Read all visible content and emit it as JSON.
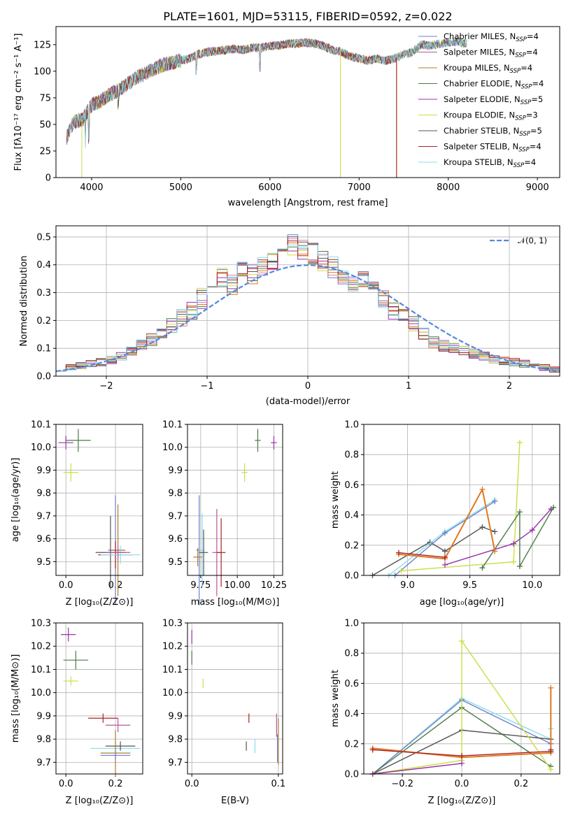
{
  "title": "PLATE=1601, MJD=53115, FIBERID=0592, z=0.022",
  "colors": {
    "Chabrier MILES": "#6f7fc8",
    "Salpeter MILES": "#b05a9a",
    "Kroupa MILES": "#b07c2a",
    "Chabrier ELODIE": "#4a7a4a",
    "Salpeter ELODIE": "#9933aa",
    "Kroupa ELODIE": "#ccdd44",
    "Chabrier STELIB": "#555555",
    "Salpeter STELIB": "#aa2222",
    "Kroupa STELIB": "#88ddee",
    "orange": "#e07820",
    "pink": "#ee77aa",
    "gauss": "#5588dd"
  },
  "chart_data": [
    {
      "type": "line",
      "xlabel": "wavelength [Angstrom, rest frame]",
      "ylabel": "Flux [fλ10⁻¹⁷ erg cm⁻² s⁻¹ A⁻¹]",
      "xlim": [
        3600,
        9250
      ],
      "ylim": [
        0,
        142
      ],
      "xticks": [
        "4000",
        "5000",
        "6000",
        "7000",
        "8000",
        "9000"
      ],
      "yticks": [
        "0",
        "25",
        "50",
        "75",
        "100",
        "125"
      ],
      "legend_position": "right",
      "series": [
        {
          "name": "Chabrier MILES, N",
          "sub": "SSP",
          "suffix": "=4"
        },
        {
          "name": "Salpeter MILES, N",
          "sub": "SSP",
          "suffix": "=4"
        },
        {
          "name": "Kroupa MILES, N",
          "sub": "SSP",
          "suffix": "=4"
        },
        {
          "name": "Chabrier ELODIE, N",
          "sub": "SSP",
          "suffix": "=4"
        },
        {
          "name": "Salpeter ELODIE, N",
          "sub": "SSP",
          "suffix": "=5"
        },
        {
          "name": "Kroupa ELODIE, N",
          "sub": "SSP",
          "suffix": "=3"
        },
        {
          "name": "Chabrier STELIB, N",
          "sub": "SSP",
          "suffix": "=5"
        },
        {
          "name": "Salpeter STELIB, N",
          "sub": "SSP",
          "suffix": "=4"
        },
        {
          "name": "Kroupa STELIB, N",
          "sub": "SSP",
          "suffix": "=4"
        }
      ],
      "spectrum_anchor": {
        "x": [
          3720,
          3800,
          3900,
          4000,
          4100,
          4200,
          4300,
          4400,
          4500,
          4600,
          4700,
          4800,
          4900,
          5000,
          5100,
          5200,
          5300,
          5400,
          5500,
          5600,
          5700,
          5800,
          5900,
          6000,
          6100,
          6200,
          6300,
          6400,
          6500,
          6600,
          6700,
          6800,
          6900,
          7000,
          7100,
          7200,
          7300,
          7400,
          7500,
          7600,
          7700,
          7800,
          7900,
          8000,
          8100,
          8200
        ],
        "y": [
          38,
          52,
          55,
          68,
          72,
          78,
          82,
          88,
          94,
          98,
          102,
          106,
          108,
          110,
          112,
          116,
          118,
          119,
          120,
          121,
          120,
          122,
          122,
          124,
          124,
          126,
          126,
          127,
          126,
          124,
          120,
          118,
          114,
          112,
          110,
          112,
          110,
          112,
          116,
          118,
          125,
          124,
          126,
          127,
          128,
          126
        ]
      }
    },
    {
      "type": "bar",
      "xlabel": "(data-model)/error",
      "ylabel": "Normed distribution",
      "xlim": [
        -2.5,
        2.5
      ],
      "ylim": [
        0,
        0.54
      ],
      "xticks": [
        "−2",
        "−1",
        "0",
        "1",
        "2"
      ],
      "yticks": [
        "0.0",
        "0.1",
        "0.2",
        "0.3",
        "0.4",
        "0.5"
      ],
      "legend": "𝒩(0, 1)",
      "legend_position": "top-right",
      "histogram_mean": [
        0.03,
        0.03,
        0.04,
        0.045,
        0.05,
        0.06,
        0.07,
        0.09,
        0.11,
        0.13,
        0.15,
        0.18,
        0.21,
        0.24,
        0.28,
        0.32,
        0.36,
        0.33,
        0.38,
        0.37,
        0.39,
        0.42,
        0.45,
        0.47,
        0.46,
        0.44,
        0.41,
        0.39,
        0.37,
        0.33,
        0.34,
        0.3,
        0.27,
        0.24,
        0.21,
        0.19,
        0.15,
        0.12,
        0.11,
        0.1,
        0.09,
        0.08,
        0.07,
        0.06,
        0.055,
        0.05,
        0.045,
        0.04,
        0.03,
        0.025
      ]
    },
    {
      "type": "scatter",
      "xlabel": "Z [log₁₀(Z/Z⊙)]",
      "ylabel": "age  [log₁₀(age/yr)]",
      "xlim": [
        -0.04,
        0.31
      ],
      "ylim": [
        9.44,
        10.1
      ],
      "xticks": [
        {
          "v": 0,
          "t": "0.0"
        },
        {
          "v": 0.2,
          "t": "0.2"
        }
      ],
      "yticks": [
        {
          "v": 9.5,
          "t": "9.5"
        },
        {
          "v": 9.6,
          "t": "9.6"
        },
        {
          "v": 9.7,
          "t": "9.7"
        },
        {
          "v": 9.8,
          "t": "9.8"
        },
        {
          "v": 9.9,
          "t": "9.9"
        },
        {
          "v": 10.0,
          "t": "10.0"
        },
        {
          "v": 10.1,
          "t": "10.1"
        }
      ],
      "points": [
        {
          "c": "Salpeter ELODIE",
          "x": 0.0,
          "y": 10.02,
          "ex": 0.03,
          "ey": 0.03
        },
        {
          "c": "Chabrier ELODIE",
          "x": 0.05,
          "y": 10.03,
          "ex": 0.05,
          "ey": 0.05
        },
        {
          "c": "Kroupa ELODIE",
          "x": 0.02,
          "y": 9.89,
          "ex": 0.03,
          "ey": 0.04
        },
        {
          "c": "Chabrier MILES",
          "x": 0.2,
          "y": 9.55,
          "ex": 0.03,
          "ey": 0.24
        },
        {
          "c": "Kroupa MILES",
          "x": 0.21,
          "y": 9.55,
          "ex": 0.03,
          "ey": 0.2
        },
        {
          "c": "Chabrier STELIB",
          "x": 0.18,
          "y": 9.54,
          "ex": 0.06,
          "ey": 0.16
        },
        {
          "c": "Salpeter STELIB",
          "x": 0.2,
          "y": 9.53,
          "ex": 0.07,
          "ey": 0.06
        },
        {
          "c": "Kroupa STELIB",
          "x": 0.22,
          "y": 9.53,
          "ex": 0.08,
          "ey": 0.04
        },
        {
          "c": "Salpeter MILES",
          "x": 0.21,
          "y": 9.54,
          "ex": 0.05,
          "ey": 0.03
        }
      ]
    },
    {
      "type": "scatter",
      "xlabel": "mass [log₁₀(M/M⊙)]",
      "ylabel": "",
      "xlim": [
        9.66,
        10.31
      ],
      "ylim": [
        9.44,
        10.1
      ],
      "xticks": [
        {
          "v": 9.75,
          "t": "9.75"
        },
        {
          "v": 10.0,
          "t": "10.00"
        },
        {
          "v": 10.25,
          "t": "10.25"
        }
      ],
      "yticks": [
        {
          "v": 9.5,
          "t": "9.5"
        },
        {
          "v": 9.6,
          "t": "9.6"
        },
        {
          "v": 9.7,
          "t": "9.7"
        },
        {
          "v": 9.8,
          "t": "9.8"
        },
        {
          "v": 9.9,
          "t": "9.9"
        },
        {
          "v": 10.0,
          "t": "10.0"
        },
        {
          "v": 10.1,
          "t": "10.1"
        }
      ],
      "points": [
        {
          "c": "Salpeter ELODIE",
          "x": 10.25,
          "y": 10.02,
          "ex": 0.02,
          "ey": 0.03
        },
        {
          "c": "Chabrier ELODIE",
          "x": 10.14,
          "y": 10.03,
          "ex": 0.02,
          "ey": 0.05
        },
        {
          "c": "Kroupa ELODIE",
          "x": 10.05,
          "y": 9.89,
          "ex": 0.02,
          "ey": 0.04
        },
        {
          "c": "Chabrier MILES",
          "x": 9.74,
          "y": 9.55,
          "ex": 0.02,
          "ey": 0.24
        },
        {
          "c": "Kroupa STELIB",
          "x": 9.76,
          "y": 9.55,
          "ex": 0.02,
          "ey": 0.16
        },
        {
          "c": "Chabrier STELIB",
          "x": 9.77,
          "y": 9.54,
          "ex": 0.03,
          "ey": 0.1
        },
        {
          "c": "Kroupa MILES",
          "x": 9.73,
          "y": 9.52,
          "ex": 0.03,
          "ey": 0.04
        },
        {
          "c": "Salpeter MILES",
          "x": 9.86,
          "y": 9.54,
          "ex": 0.03,
          "ey": 0.19
        },
        {
          "c": "Salpeter STELIB",
          "x": 9.89,
          "y": 9.54,
          "ex": 0.03,
          "ey": 0.15
        }
      ]
    },
    {
      "type": "line",
      "xlabel": "age  [log₁₀(age/yr)]",
      "ylabel": "mass weight",
      "xlim": [
        8.65,
        10.22
      ],
      "ylim": [
        0,
        1
      ],
      "xticks": [
        {
          "v": 9.0,
          "t": "9.0"
        },
        {
          "v": 9.5,
          "t": "9.5"
        },
        {
          "v": 10.0,
          "t": "10.0"
        }
      ],
      "yticks": [
        {
          "v": 0,
          "t": "0.0"
        },
        {
          "v": 0.2,
          "t": "0.2"
        },
        {
          "v": 0.4,
          "t": "0.4"
        },
        {
          "v": 0.6,
          "t": "0.6"
        },
        {
          "v": 0.8,
          "t": "0.8"
        },
        {
          "v": 1.0,
          "t": "1.0"
        }
      ],
      "lines": [
        {
          "c": "Chabrier STELIB",
          "x": [
            8.72,
            9.18,
            9.3,
            9.6,
            9.7
          ],
          "y": [
            0.0,
            0.22,
            0.16,
            0.32,
            0.29
          ]
        },
        {
          "c": "Kroupa STELIB",
          "x": [
            8.85,
            9.3,
            9.7
          ],
          "y": [
            0.0,
            0.29,
            0.5
          ]
        },
        {
          "c": "Chabrier MILES",
          "x": [
            8.9,
            9.3,
            9.7
          ],
          "y": [
            0.0,
            0.28,
            0.49
          ]
        },
        {
          "c": "Kroupa ELODIE",
          "x": [
            8.95,
            9.85,
            9.9
          ],
          "y": [
            0.03,
            0.09,
            0.88
          ]
        },
        {
          "c": "Salpeter ELODIE",
          "x": [
            9.3,
            9.85,
            10.0,
            10.15
          ],
          "y": [
            0.07,
            0.21,
            0.3,
            0.44
          ]
        },
        {
          "c": "Chabrier ELODIE",
          "x": [
            9.6,
            9.9,
            9.9,
            10.17
          ],
          "y": [
            0.05,
            0.42,
            0.06,
            0.45
          ]
        },
        {
          "c": "orange",
          "x": [
            8.93,
            9.3,
            9.6,
            9.7
          ],
          "y": [
            0.14,
            0.11,
            0.57,
            0.16
          ]
        },
        {
          "c": "Salpeter STELIB",
          "x": [
            8.93,
            9.3
          ],
          "y": [
            0.15,
            0.12
          ]
        }
      ]
    },
    {
      "type": "scatter",
      "xlabel": "Z [log₁₀(Z/Z⊙)]",
      "ylabel": "mass [log₁₀(M/M⊙)]",
      "xlim": [
        -0.04,
        0.31
      ],
      "ylim": [
        9.65,
        10.3
      ],
      "xticks": [
        {
          "v": 0,
          "t": "0.0"
        },
        {
          "v": 0.2,
          "t": "0.2"
        }
      ],
      "yticks": [
        {
          "v": 9.7,
          "t": "9.7"
        },
        {
          "v": 9.8,
          "t": "9.8"
        },
        {
          "v": 9.9,
          "t": "9.9"
        },
        {
          "v": 10.0,
          "t": "10.0"
        },
        {
          "v": 10.1,
          "t": "10.1"
        },
        {
          "v": 10.2,
          "t": "10.2"
        },
        {
          "v": 10.3,
          "t": "10.3"
        }
      ],
      "points": [
        {
          "c": "Salpeter ELODIE",
          "x": 0.01,
          "y": 10.25,
          "ex": 0.03,
          "ey": 0.03
        },
        {
          "c": "Chabrier ELODIE",
          "x": 0.04,
          "y": 10.14,
          "ex": 0.05,
          "ey": 0.04
        },
        {
          "c": "Kroupa ELODIE",
          "x": 0.02,
          "y": 10.05,
          "ex": 0.03,
          "ey": 0.02
        },
        {
          "c": "Salpeter STELIB",
          "x": 0.15,
          "y": 9.89,
          "ex": 0.06,
          "ey": 0.02
        },
        {
          "c": "Salpeter MILES",
          "x": 0.21,
          "y": 9.86,
          "ex": 0.05,
          "ey": 0.03
        },
        {
          "c": "Kroupa STELIB",
          "x": 0.2,
          "y": 9.76,
          "ex": 0.1,
          "ey": 0.03
        },
        {
          "c": "Chabrier STELIB",
          "x": 0.22,
          "y": 9.77,
          "ex": 0.06,
          "ey": 0.02
        },
        {
          "c": "Kroupa MILES",
          "x": 0.2,
          "y": 9.74,
          "ex": 0.06,
          "ey": 0.1
        },
        {
          "c": "Chabrier MILES",
          "x": 0.2,
          "y": 9.73,
          "ex": 0.06,
          "ey": 0.02
        }
      ]
    },
    {
      "type": "scatter",
      "xlabel": "E(B-V)",
      "ylabel": "",
      "xlim": [
        -0.005,
        0.105
      ],
      "ylim": [
        9.65,
        10.3
      ],
      "xticks": [
        {
          "v": 0,
          "t": "0.0"
        },
        {
          "v": 0.1,
          "t": "0.1"
        }
      ],
      "yticks": [
        {
          "v": 9.7,
          "t": "9.7"
        },
        {
          "v": 9.8,
          "t": "9.8"
        },
        {
          "v": 9.9,
          "t": "9.9"
        },
        {
          "v": 10.0,
          "t": "10.0"
        },
        {
          "v": 10.1,
          "t": "10.1"
        },
        {
          "v": 10.2,
          "t": "10.2"
        },
        {
          "v": 10.3,
          "t": "10.3"
        }
      ],
      "points": [
        {
          "c": "Salpeter ELODIE",
          "x": 0.0,
          "y": 10.24,
          "ex": 0.0,
          "ey": 0.03
        },
        {
          "c": "Chabrier ELODIE",
          "x": 0.0,
          "y": 10.15,
          "ex": 0.0,
          "ey": 0.03
        },
        {
          "c": "Kroupa ELODIE",
          "x": 0.013,
          "y": 10.04,
          "ex": 0.0,
          "ey": 0.02
        },
        {
          "c": "Salpeter STELIB",
          "x": 0.066,
          "y": 9.89,
          "ex": 0.0,
          "ey": 0.02
        },
        {
          "c": "Chabrier STELIB",
          "x": 0.063,
          "y": 9.77,
          "ex": 0.0,
          "ey": 0.02
        },
        {
          "c": "Kroupa STELIB",
          "x": 0.073,
          "y": 9.77,
          "ex": 0.0,
          "ey": 0.03
        },
        {
          "c": "Salpeter MILES",
          "x": 0.098,
          "y": 9.86,
          "ex": 0.0,
          "ey": 0.05
        },
        {
          "c": "Kroupa MILES",
          "x": 0.1,
          "y": 9.79,
          "ex": 0.0,
          "ey": 0.1
        },
        {
          "c": "Chabrier MILES",
          "x": 0.099,
          "y": 9.76,
          "ex": 0.0,
          "ey": 0.06
        }
      ]
    },
    {
      "type": "line",
      "xlabel": "Z [log₁₀(Z/Z⊙)]",
      "ylabel": "mass weight",
      "xlim": [
        -0.33,
        0.33
      ],
      "ylim": [
        0,
        1
      ],
      "xticks": [
        {
          "v": -0.2,
          "t": "−0.2"
        },
        {
          "v": 0,
          "t": "0.0"
        },
        {
          "v": 0.2,
          "t": "0.2"
        }
      ],
      "yticks": [
        {
          "v": 0,
          "t": "0.0"
        },
        {
          "v": 0.2,
          "t": "0.2"
        },
        {
          "v": 0.4,
          "t": "0.4"
        },
        {
          "v": 0.6,
          "t": "0.6"
        },
        {
          "v": 0.8,
          "t": "0.8"
        },
        {
          "v": 1.0,
          "t": "1.0"
        }
      ],
      "lines": [
        {
          "c": "Kroupa STELIB",
          "x": [
            -0.3,
            0.0,
            0.3,
            0.3
          ],
          "y": [
            0.0,
            0.5,
            0.23,
            0.3
          ]
        },
        {
          "c": "Chabrier MILES",
          "x": [
            -0.3,
            0.0,
            0.3
          ],
          "y": [
            0.0,
            0.49,
            0.2
          ]
        },
        {
          "c": "Chabrier ELODIE",
          "x": [
            -0.3,
            0.0,
            0.3
          ],
          "y": [
            0.0,
            0.44,
            0.05
          ]
        },
        {
          "c": "Chabrier STELIB",
          "x": [
            -0.3,
            0.0,
            0.3,
            0.3
          ],
          "y": [
            0.0,
            0.29,
            0.23,
            0.16
          ]
        },
        {
          "c": "Kroupa ELODIE",
          "x": [
            -0.3,
            0.0,
            0.0,
            0.3
          ],
          "y": [
            0.0,
            0.09,
            0.88,
            0.03
          ]
        },
        {
          "c": "Salpeter ELODIE",
          "x": [
            -0.3,
            0.0
          ],
          "y": [
            0.0,
            0.07
          ]
        },
        {
          "c": "orange",
          "x": [
            -0.3,
            0.0,
            0.3,
            0.3
          ],
          "y": [
            0.17,
            0.11,
            0.14,
            0.57
          ]
        },
        {
          "c": "Salpeter STELIB",
          "x": [
            -0.3,
            0.0,
            0.3
          ],
          "y": [
            0.16,
            0.12,
            0.15
          ]
        }
      ]
    }
  ]
}
